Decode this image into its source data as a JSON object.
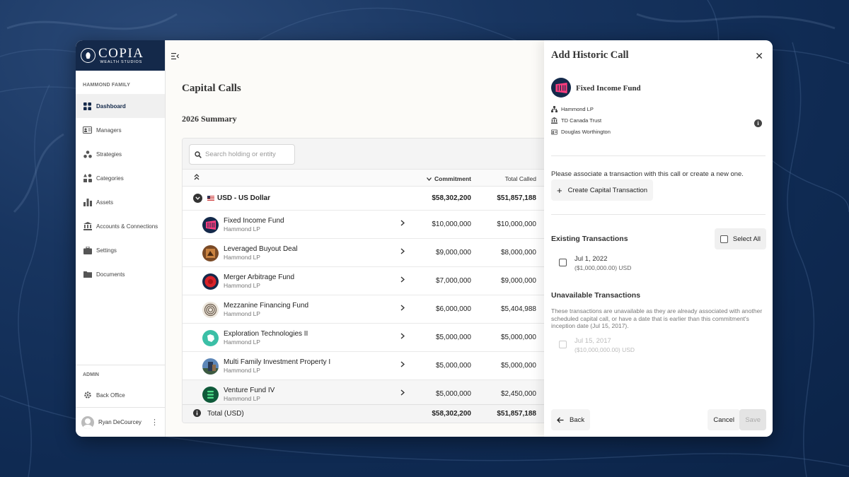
{
  "brand": {
    "name": "COPIA",
    "tagline": "WEALTH STUDIOS"
  },
  "sidebar": {
    "section": "HAMMOND FAMILY",
    "items": [
      {
        "label": "Dashboard",
        "icon": "dashboard-icon",
        "active": true
      },
      {
        "label": "Managers",
        "icon": "id-card-icon"
      },
      {
        "label": "Strategies",
        "icon": "strategies-icon"
      },
      {
        "label": "Categories",
        "icon": "categories-icon"
      },
      {
        "label": "Assets",
        "icon": "bar-chart-icon"
      },
      {
        "label": "Accounts & Connections",
        "icon": "bank-icon"
      },
      {
        "label": "Settings",
        "icon": "briefcase-icon"
      },
      {
        "label": "Documents",
        "icon": "folder-icon"
      }
    ],
    "admin_section": "ADMIN",
    "back_office": "Back Office",
    "user": "Ryan DeCourcey"
  },
  "main": {
    "title": "Capital Calls",
    "summary_title": "2026 Summary",
    "search_placeholder": "Search holding or entity",
    "columns": {
      "commitment": "Commitment",
      "total_called": "Total Called"
    },
    "group": {
      "flag": "🇺🇸",
      "label": "USD - US Dollar",
      "commitment": "$58,302,200",
      "total_called": "$51,857,188"
    },
    "rows": [
      {
        "name": "Fixed Income Fund",
        "owner": "Hammond LP",
        "commitment": "$10,000,000",
        "total_called": "$10,000,000"
      },
      {
        "name": "Leveraged Buyout Deal",
        "owner": "Hammond LP",
        "commitment": "$9,000,000",
        "total_called": "$8,000,000"
      },
      {
        "name": "Merger Arbitrage Fund",
        "owner": "Hammond LP",
        "commitment": "$7,000,000",
        "total_called": "$9,000,000"
      },
      {
        "name": "Mezzanine Financing Fund",
        "owner": "Hammond LP",
        "commitment": "$6,000,000",
        "total_called": "$5,404,988"
      },
      {
        "name": "Exploration Technologies II",
        "owner": "Hammond LP",
        "commitment": "$5,000,000",
        "total_called": "$5,000,000"
      },
      {
        "name": "Multi Family Investment Property I",
        "owner": "Hammond LP",
        "commitment": "$5,000,000",
        "total_called": "$5,000,000"
      },
      {
        "name": "Venture Fund IV",
        "owner": "Hammond LP",
        "commitment": "$5,000,000",
        "total_called": "$2,450,000"
      }
    ],
    "total": {
      "label": "Total (USD)",
      "commitment": "$58,302,200",
      "total_called": "$51,857,188"
    }
  },
  "panel": {
    "title": "Add Historic Call",
    "fund_name": "Fixed Income Fund",
    "entity": "Hammond LP",
    "custodian": "TD Canada Trust",
    "manager": "Douglas Worthington",
    "associate_text": "Please associate a transaction with this call or create a new one.",
    "create_label": "Create Capital Transaction",
    "existing_title": "Existing Transactions",
    "select_all": "Select All",
    "existing": [
      {
        "date": "Jul 1, 2022",
        "amount": "($1,000,000.00) USD"
      }
    ],
    "unavailable_title": "Unavailable Transactions",
    "unavailable_text": "These transactions are unavailable as they are already associated with another scheduled capital call, or have a date that is earlier than this commitment's inception date (Jul 15, 2017).",
    "unavailable": [
      {
        "date": "Jul 15, 2017",
        "amount": "($10,000,000.00) USD"
      }
    ],
    "back": "Back",
    "cancel": "Cancel",
    "save": "Save"
  }
}
